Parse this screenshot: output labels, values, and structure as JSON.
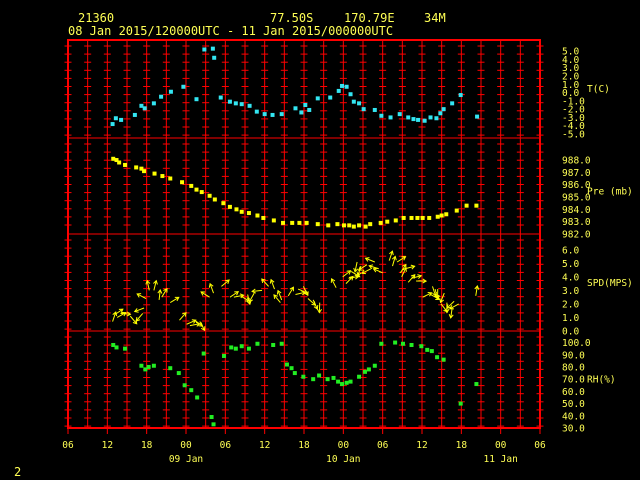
{
  "header": {
    "station": "21360",
    "latitude": "77.50S",
    "longitude": "170.79E",
    "elevation": "34M",
    "period": "08 Jan 2015/120000UTC - 11 Jan 2015/000000UTC"
  },
  "page_number": "2",
  "colors": {
    "background": "#000000",
    "frame": "#ff0000",
    "text": "#ffff55",
    "temperature": "#33e6f2",
    "pressure": "#ffff00",
    "wind": "#ffff00",
    "humidity": "#22ee22"
  },
  "chart_data": {
    "type": "scatter",
    "x_unit": "hours from 08 Jan 2015 06UTC",
    "x_range": [
      0,
      72
    ],
    "x_tick_labels": [
      "06",
      "12",
      "18",
      "00",
      "06",
      "12",
      "18",
      "00",
      "06",
      "12",
      "18",
      "00",
      "06"
    ],
    "date_labels": [
      {
        "label": "09 Jan",
        "x": 18
      },
      {
        "label": "10 Jan",
        "x": 42
      },
      {
        "label": "11 Jan",
        "x": 66
      }
    ],
    "panels": [
      {
        "key": "temp",
        "label": "T(C)",
        "marker": "square",
        "color": "#33e6f2",
        "ylim": [
          -5,
          5.5
        ],
        "ticks": [
          "5.0",
          "4.0",
          "3.0",
          "2.0",
          "1.0",
          "0.0",
          "-1.0",
          "-2.0",
          "-3.0",
          "-4.0",
          "-5.0"
        ],
        "tick_values": [
          5,
          4,
          3,
          2,
          1,
          0,
          -1,
          -2,
          -3,
          -4,
          -5
        ],
        "points": [
          [
            6.8,
            -3.8
          ],
          [
            7.3,
            -3.1
          ],
          [
            8.1,
            -3.3
          ],
          [
            10.2,
            -2.7
          ],
          [
            11.2,
            -1.6
          ],
          [
            11.7,
            -1.9
          ],
          [
            13.1,
            -1.3
          ],
          [
            14.2,
            -0.5
          ],
          [
            15.7,
            0.1
          ],
          [
            17.6,
            0.7
          ],
          [
            19.6,
            -0.8
          ],
          [
            20.8,
            5.2
          ],
          [
            22.1,
            5.3
          ],
          [
            22.3,
            4.2
          ],
          [
            23.3,
            -0.6
          ],
          [
            24.7,
            -1.1
          ],
          [
            25.6,
            -1.3
          ],
          [
            26.5,
            -1.4
          ],
          [
            27.7,
            -1.6
          ],
          [
            28.8,
            -2.3
          ],
          [
            30.0,
            -2.6
          ],
          [
            31.2,
            -2.7
          ],
          [
            32.6,
            -2.6
          ],
          [
            34.7,
            -1.9
          ],
          [
            35.6,
            -2.4
          ],
          [
            36.2,
            -1.5
          ],
          [
            36.8,
            -2.1
          ],
          [
            38.1,
            -0.7
          ],
          [
            40.0,
            -0.6
          ],
          [
            41.3,
            0.2
          ],
          [
            41.8,
            0.8
          ],
          [
            42.5,
            0.7
          ],
          [
            43.1,
            -0.2
          ],
          [
            43.6,
            -1.1
          ],
          [
            44.4,
            -1.3
          ],
          [
            45.1,
            -2.0
          ],
          [
            46.8,
            -2.1
          ],
          [
            47.8,
            -2.8
          ],
          [
            49.2,
            -3.0
          ],
          [
            50.6,
            -2.6
          ],
          [
            51.9,
            -3.0
          ],
          [
            52.7,
            -3.2
          ],
          [
            53.4,
            -3.3
          ],
          [
            54.4,
            -3.4
          ],
          [
            55.3,
            -3.0
          ],
          [
            56.2,
            -3.1
          ],
          [
            56.8,
            -2.5
          ],
          [
            57.3,
            -2.0
          ],
          [
            58.6,
            -1.3
          ],
          [
            59.9,
            -0.3
          ],
          [
            62.4,
            -2.9
          ]
        ]
      },
      {
        "key": "pres",
        "label": "Pre (mb)",
        "marker": "square",
        "color": "#ffff00",
        "ylim": [
          982,
          989.3
        ],
        "ticks": [
          "988.0",
          "987.0",
          "986.0",
          "985.0",
          "984.0",
          "983.0",
          "982.0"
        ],
        "tick_values": [
          988,
          987,
          986,
          985,
          984,
          983,
          982
        ],
        "points": [
          [
            6.9,
            988.1
          ],
          [
            7.4,
            988.0
          ],
          [
            7.8,
            987.8
          ],
          [
            8.7,
            987.6
          ],
          [
            10.4,
            987.4
          ],
          [
            11.2,
            987.3
          ],
          [
            11.6,
            987.1
          ],
          [
            13.2,
            986.9
          ],
          [
            14.4,
            986.7
          ],
          [
            15.6,
            986.5
          ],
          [
            17.4,
            986.2
          ],
          [
            18.8,
            985.9
          ],
          [
            19.6,
            985.6
          ],
          [
            20.4,
            985.4
          ],
          [
            21.6,
            985.1
          ],
          [
            22.4,
            984.8
          ],
          [
            23.7,
            984.5
          ],
          [
            24.7,
            984.2
          ],
          [
            25.7,
            984.0
          ],
          [
            26.5,
            983.8
          ],
          [
            27.6,
            983.7
          ],
          [
            28.9,
            983.5
          ],
          [
            29.8,
            983.3
          ],
          [
            31.4,
            983.1
          ],
          [
            32.8,
            982.9
          ],
          [
            34.2,
            982.9
          ],
          [
            35.3,
            982.9
          ],
          [
            36.4,
            982.9
          ],
          [
            38.1,
            982.8
          ],
          [
            39.7,
            982.7
          ],
          [
            41.1,
            982.8
          ],
          [
            42.1,
            982.7
          ],
          [
            42.9,
            982.7
          ],
          [
            43.6,
            982.6
          ],
          [
            44.4,
            982.7
          ],
          [
            45.4,
            982.6
          ],
          [
            46.1,
            982.8
          ],
          [
            47.7,
            982.9
          ],
          [
            48.7,
            983.0
          ],
          [
            50.0,
            983.1
          ],
          [
            51.2,
            983.3
          ],
          [
            52.4,
            983.3
          ],
          [
            53.3,
            983.3
          ],
          [
            54.1,
            983.3
          ],
          [
            55.1,
            983.3
          ],
          [
            56.4,
            983.4
          ],
          [
            57.0,
            983.5
          ],
          [
            57.7,
            983.6
          ],
          [
            59.3,
            983.9
          ],
          [
            60.8,
            984.3
          ],
          [
            62.3,
            984.3
          ]
        ]
      },
      {
        "key": "wind",
        "label": "SPD(MPS)",
        "marker": "arrow",
        "color": "#ffff00",
        "ylim": [
          0,
          6.8
        ],
        "ticks": [
          "6.0",
          "5.0",
          "4.0",
          "3.0",
          "2.0",
          "1.0",
          "0.0"
        ],
        "tick_values": [
          6,
          5,
          4,
          3,
          2,
          1,
          0
        ],
        "points": [
          [
            6.8,
            0.7
          ],
          [
            7.1,
            1.2
          ],
          [
            7.5,
            1.0
          ],
          [
            8.0,
            1.3
          ],
          [
            9.5,
            1.1
          ],
          [
            11.4,
            1.3
          ],
          [
            11.6,
            1.7
          ],
          [
            11.9,
            2.4
          ],
          [
            12.4,
            3.0
          ],
          [
            13.1,
            3.0
          ],
          [
            13.9,
            2.3
          ],
          [
            14.3,
            2.5
          ],
          [
            15.6,
            2.1
          ],
          [
            17.0,
            0.8
          ],
          [
            18.1,
            0.5
          ],
          [
            18.6,
            0.4
          ],
          [
            19.3,
            0.8
          ],
          [
            20.1,
            0.7
          ],
          [
            21.6,
            2.5
          ],
          [
            22.2,
            2.8
          ],
          [
            23.4,
            3.3
          ],
          [
            24.7,
            2.5
          ],
          [
            25.3,
            2.5
          ],
          [
            26.3,
            2.6
          ],
          [
            27.4,
            2.7
          ],
          [
            28.4,
            2.8
          ],
          [
            29.6,
            3.0
          ],
          [
            30.6,
            3.3
          ],
          [
            31.5,
            3.1
          ],
          [
            32.4,
            2.1
          ],
          [
            32.6,
            2.3
          ],
          [
            33.6,
            2.6
          ],
          [
            34.7,
            2.7
          ],
          [
            35.1,
            3.1
          ],
          [
            35.9,
            3.3
          ],
          [
            36.6,
            2.4
          ],
          [
            37.4,
            2.3
          ],
          [
            38.4,
            2.1
          ],
          [
            40.9,
            3.2
          ],
          [
            41.9,
            4.0
          ],
          [
            42.4,
            3.5
          ],
          [
            42.8,
            3.9
          ],
          [
            43.2,
            4.4
          ],
          [
            44.1,
            5.1
          ],
          [
            44.7,
            4.8
          ],
          [
            45.6,
            4.9
          ],
          [
            46.2,
            4.6
          ],
          [
            46.8,
            5.1
          ],
          [
            47.4,
            4.6
          ],
          [
            48.0,
            4.3
          ],
          [
            49.0,
            5.2
          ],
          [
            49.5,
            4.8
          ],
          [
            50.2,
            5.1
          ],
          [
            50.7,
            4.3
          ],
          [
            50.9,
            4.0
          ],
          [
            51.4,
            4.6
          ],
          [
            51.9,
            3.6
          ],
          [
            52.4,
            3.9
          ],
          [
            53.1,
            3.7
          ],
          [
            54.1,
            2.5
          ],
          [
            55.3,
            2.7
          ],
          [
            55.6,
            3.3
          ],
          [
            56.0,
            3.1
          ],
          [
            56.4,
            3.1
          ],
          [
            56.9,
            2.0
          ],
          [
            57.4,
            2.8
          ],
          [
            57.8,
            2.1
          ],
          [
            58.6,
            1.7
          ],
          [
            58.9,
            2.2
          ],
          [
            59.6,
            2.0
          ],
          [
            62.2,
            2.6
          ]
        ]
      },
      {
        "key": "rh",
        "label": "RH(%)",
        "marker": "square",
        "color": "#22ee22",
        "ylim": [
          30,
          107
        ],
        "ticks": [
          "100.0",
          "90.0",
          "80.0",
          "70.0",
          "60.0",
          "50.0",
          "40.0",
          "30.0"
        ],
        "tick_values": [
          100,
          90,
          80,
          70,
          60,
          50,
          40,
          30
        ],
        "points": [
          [
            6.9,
            98
          ],
          [
            7.4,
            96
          ],
          [
            8.7,
            95
          ],
          [
            11.2,
            81
          ],
          [
            11.8,
            78
          ],
          [
            12.3,
            80
          ],
          [
            13.1,
            81
          ],
          [
            15.6,
            79
          ],
          [
            16.9,
            75
          ],
          [
            17.8,
            65
          ],
          [
            18.8,
            61
          ],
          [
            19.7,
            55
          ],
          [
            20.7,
            91
          ],
          [
            21.9,
            39
          ],
          [
            22.2,
            33
          ],
          [
            23.8,
            89
          ],
          [
            24.9,
            96
          ],
          [
            25.6,
            95
          ],
          [
            26.5,
            97
          ],
          [
            27.6,
            95
          ],
          [
            28.9,
            99
          ],
          [
            31.3,
            98
          ],
          [
            32.6,
            99
          ],
          [
            33.4,
            82
          ],
          [
            34.1,
            79
          ],
          [
            34.6,
            75
          ],
          [
            35.9,
            72
          ],
          [
            37.4,
            70
          ],
          [
            38.3,
            73
          ],
          [
            39.6,
            70
          ],
          [
            40.5,
            71
          ],
          [
            41.2,
            68
          ],
          [
            41.8,
            66
          ],
          [
            42.5,
            67
          ],
          [
            43.1,
            68
          ],
          [
            44.4,
            72
          ],
          [
            45.3,
            76
          ],
          [
            45.9,
            78
          ],
          [
            46.8,
            81
          ],
          [
            47.8,
            99
          ],
          [
            49.9,
            100
          ],
          [
            51.1,
            99
          ],
          [
            52.4,
            98
          ],
          [
            53.9,
            97
          ],
          [
            54.8,
            94
          ],
          [
            55.5,
            93
          ],
          [
            56.3,
            88
          ],
          [
            57.3,
            86
          ],
          [
            59.9,
            50
          ],
          [
            62.3,
            66
          ]
        ]
      }
    ]
  }
}
